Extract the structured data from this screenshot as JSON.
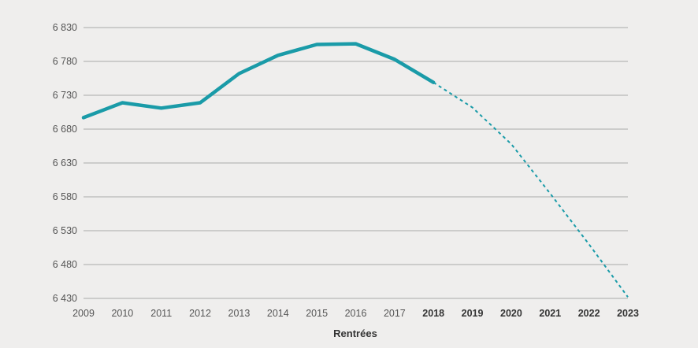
{
  "chart_data": {
    "type": "line",
    "xlabel": "Rentrées",
    "ylabel": "",
    "ylim": [
      6430,
      6830
    ],
    "y_ticks": [
      6430,
      6480,
      6530,
      6580,
      6630,
      6680,
      6730,
      6780,
      6830
    ],
    "y_tick_labels": [
      "6 430",
      "6 480",
      "6 530",
      "6 580",
      "6 630",
      "6 680",
      "6 730",
      "6 780",
      "6 830"
    ],
    "categories": [
      "2009",
      "2010",
      "2011",
      "2012",
      "2013",
      "2014",
      "2015",
      "2016",
      "2017",
      "2018",
      "2019",
      "2020",
      "2021",
      "2022",
      "2023"
    ],
    "bold_categories": [
      "2018",
      "2019",
      "2020",
      "2021",
      "2022",
      "2023"
    ],
    "series": [
      {
        "style": "solid",
        "color": "#1a9ba8",
        "x": [
          "2009",
          "2010",
          "2011",
          "2012",
          "2013",
          "2014",
          "2015",
          "2016",
          "2017",
          "2018"
        ],
        "values": [
          6697,
          6719,
          6711,
          6719,
          6762,
          6789,
          6805,
          6806,
          6783,
          6749
        ]
      },
      {
        "style": "dashed",
        "color": "#1a9ba8",
        "x": [
          "2018",
          "2019",
          "2020",
          "2021",
          "2022",
          "2023"
        ],
        "values": [
          6749,
          6712,
          6658,
          6585,
          6510,
          6432
        ]
      }
    ],
    "grid": "horizontal"
  }
}
